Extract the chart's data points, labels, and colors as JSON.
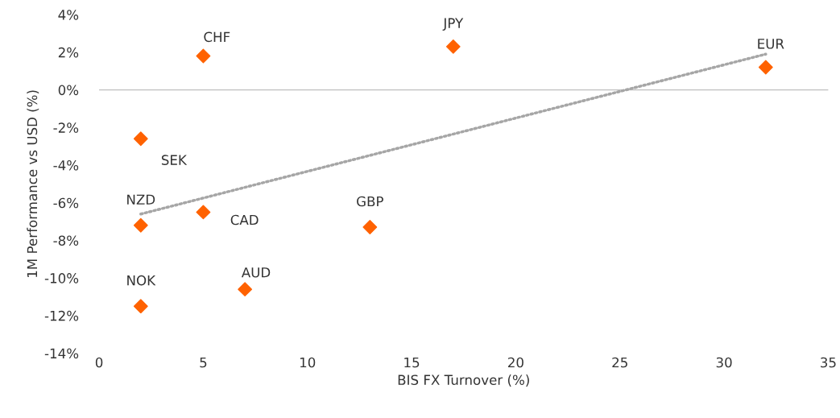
{
  "chart_data": {
    "type": "scatter",
    "xlabel": "BIS FX Turnover (%)",
    "ylabel": "1M Performance vs USD (%)",
    "series": [
      {
        "color": "#ff6200",
        "marker": "diamond",
        "x": [
          5,
          17,
          32,
          2,
          2,
          5,
          13,
          7,
          2
        ],
        "values": [
          1.8,
          2.3,
          1.2,
          -2.6,
          -7.2,
          -6.5,
          -7.3,
          -10.6,
          -11.5
        ]
      },
      {
        "type": "line",
        "color": "#a6a6a6",
        "line_style": "dotted",
        "x": [
          2,
          32
        ],
        "values": [
          -6.6,
          1.9
        ]
      }
    ],
    "annotations": [
      {
        "text": "CHF",
        "x": 5,
        "y": 1.8
      },
      {
        "text": "JPY",
        "x": 17,
        "y": 2.3
      },
      {
        "text": "EUR",
        "x": 32,
        "y": 1.2
      },
      {
        "text": "SEK",
        "x": 2,
        "y": -2.6
      },
      {
        "text": "NZD",
        "x": 2,
        "y": -7.2
      },
      {
        "text": "CAD",
        "x": 5,
        "y": -6.5
      },
      {
        "text": "GBP",
        "x": 13,
        "y": -7.3
      },
      {
        "text": "AUD",
        "x": 7,
        "y": -10.6
      },
      {
        "text": "NOK",
        "x": 2,
        "y": -11.5
      }
    ],
    "ref_lines": [
      {
        "axis": "y",
        "value": 0,
        "color": "#bfbfbf",
        "line_style": "solid"
      }
    ],
    "xlim": [
      0,
      35
    ],
    "xticks": [
      0,
      5,
      10,
      15,
      20,
      25,
      30,
      35
    ],
    "ylim": [
      -14,
      4
    ],
    "yticks": [
      {
        "value": -14,
        "label": "-14%"
      },
      {
        "value": -12,
        "label": "-12%"
      },
      {
        "value": -10,
        "label": "-10%"
      },
      {
        "value": -8,
        "label": "-8%"
      },
      {
        "value": -6,
        "label": "-6%"
      },
      {
        "value": -4,
        "label": "-4%"
      },
      {
        "value": -2,
        "label": "-2%"
      },
      {
        "value": 0,
        "label": "0%"
      },
      {
        "value": 2,
        "label": "2%"
      },
      {
        "value": 4,
        "label": "4%"
      }
    ],
    "grid": false,
    "legend": false
  }
}
